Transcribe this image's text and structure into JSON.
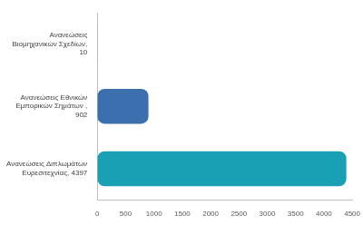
{
  "chart_data": {
    "type": "bar",
    "orientation": "horizontal",
    "categories": [
      "Ανανεώσεις Βιομηχανικών Σχεδίων, 10",
      "Ανανεώσεις Εθνικών Εμπορικών Σημάτων , 902",
      "Ανανεώσεις Διπλωμάτων Ευρεσιτεχνίας, 4397"
    ],
    "values": [
      10,
      902,
      4397
    ],
    "colors": [
      "#b7a9c6",
      "#3b6fae",
      "#1aa0b4"
    ],
    "xlim": [
      0,
      4500
    ],
    "xticks": [
      0,
      500,
      1000,
      1500,
      2000,
      2500,
      3000,
      3500,
      4000,
      4500
    ],
    "grid": false
  }
}
